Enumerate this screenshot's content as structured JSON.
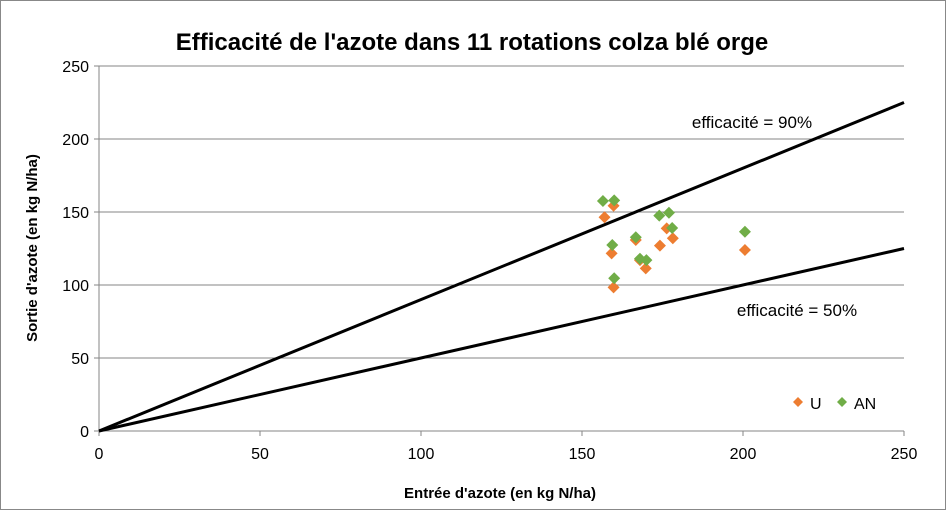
{
  "chart_data": {
    "type": "scatter",
    "title": "Efficacité de l'azote dans 11 rotations colza blé orge",
    "xlabel": "Entrée d'azote (en kg N/ha)",
    "ylabel": "Sortie d'azote (en kg N/ha)",
    "xlim": [
      0,
      250
    ],
    "ylim": [
      0,
      250
    ],
    "xticks": [
      0,
      50,
      100,
      150,
      200,
      250
    ],
    "yticks": [
      0,
      50,
      100,
      150,
      200,
      250
    ],
    "grid": "horizontal",
    "legend_position": "bottom-right",
    "series": [
      {
        "name": "U",
        "color": "#ED7D31",
        "marker": "diamond",
        "points": [
          [
            159.8,
            154.3
          ],
          [
            157,
            146.4
          ],
          [
            176.3,
            138.8
          ],
          [
            178.2,
            132
          ],
          [
            166.7,
            130.8
          ],
          [
            174.2,
            127
          ],
          [
            159.2,
            121.7
          ],
          [
            169.8,
            111.4
          ],
          [
            159.8,
            98.4
          ],
          [
            200.6,
            124
          ],
          [
            168,
            117
          ]
        ]
      },
      {
        "name": "AN",
        "color": "#70AD47",
        "marker": "diamond",
        "points": [
          [
            156.5,
            157.5
          ],
          [
            160,
            158
          ],
          [
            174,
            147.5
          ],
          [
            177,
            149.5
          ],
          [
            178,
            139
          ],
          [
            166.7,
            132.7
          ],
          [
            159.4,
            127.4
          ],
          [
            168,
            118
          ],
          [
            170,
            117
          ],
          [
            160,
            104.6
          ],
          [
            200.6,
            136.5
          ]
        ]
      }
    ],
    "reference_lines": [
      {
        "label": "efficacité = 90%",
        "slope": 0.9
      },
      {
        "label": "efficacité = 50%",
        "slope": 0.5
      }
    ]
  }
}
